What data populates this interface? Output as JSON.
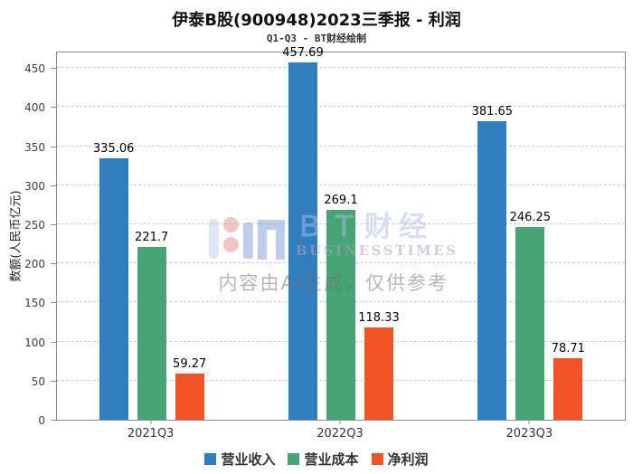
{
  "header": {
    "title": "伊泰B股(900948)2023三季报 - 利润",
    "subtitle": "Q1-Q3 - BT财经绘制"
  },
  "watermark": {
    "brand_cn": "ＢＴ财经",
    "brand_en": "BUSINESSTIMES",
    "disclaimer": "内容由AI生成，仅供参考"
  },
  "chart_data": {
    "type": "bar",
    "title": "伊泰B股(900948)2023三季报 - 利润",
    "subtitle": "Q1-Q3 - BT财经绘制",
    "categories": [
      "2021Q3",
      "2022Q3",
      "2023Q3"
    ],
    "series": [
      {
        "name": "营业收入",
        "color": "#307ebd",
        "values": [
          335.06,
          457.69,
          381.65
        ]
      },
      {
        "name": "营业成本",
        "color": "#46a475",
        "values": [
          221.7,
          269.1,
          246.25
        ]
      },
      {
        "name": "净利润",
        "color": "#ef5326",
        "values": [
          59.27,
          118.33,
          78.71
        ]
      }
    ],
    "xlabel": "",
    "ylabel": "数额(人民币亿元)",
    "ylim": [
      0,
      470
    ],
    "yticks": [
      0,
      50,
      100,
      150,
      200,
      250,
      300,
      350,
      400,
      450
    ],
    "grid": "horizontal-dashed",
    "legend_position": "bottom",
    "bar_value_labels": true
  }
}
